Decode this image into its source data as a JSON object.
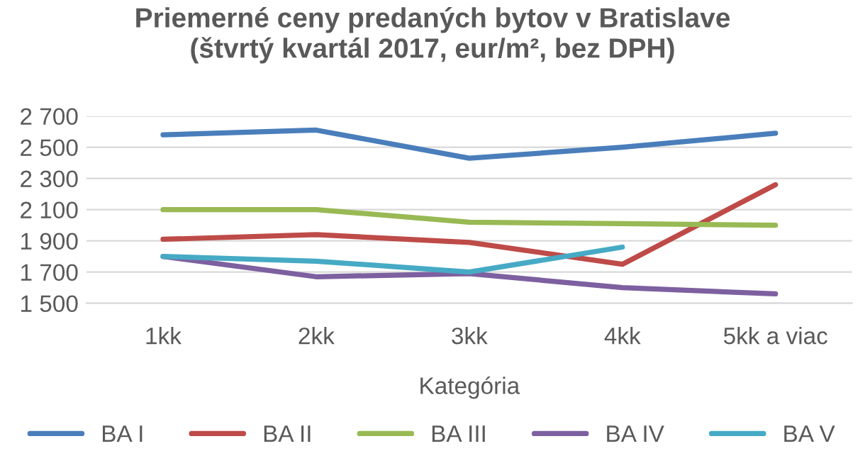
{
  "chart_data": {
    "type": "line",
    "title": "Priemerné ceny predaných bytov v Bratislave\n(štvrtý kvartál 2017, eur/m², bez DPH)",
    "xlabel": "Kategória",
    "categories": [
      "1kk",
      "2kk",
      "3kk",
      "4kk",
      "5kk a viac"
    ],
    "series": [
      {
        "name": "BA I",
        "color": "#4a7ebb",
        "values": [
          2580,
          2610,
          2430,
          2500,
          2590
        ]
      },
      {
        "name": "BA II",
        "color": "#be4b48",
        "values": [
          1910,
          1940,
          1890,
          1750,
          2260
        ]
      },
      {
        "name": "BA III",
        "color": "#98b954",
        "values": [
          2100,
          2100,
          2020,
          2010,
          2000
        ]
      },
      {
        "name": "BA IV",
        "color": "#7d60a0",
        "values": [
          1800,
          1670,
          1690,
          1600,
          1560
        ]
      },
      {
        "name": "BA V",
        "color": "#46aac5",
        "values": [
          1800,
          1770,
          1700,
          1860,
          null
        ]
      }
    ],
    "ylim": [
      1500,
      2700
    ],
    "yticks": [
      {
        "value": 1500,
        "label": "1 500"
      },
      {
        "value": 1700,
        "label": "1 700"
      },
      {
        "value": 1900,
        "label": "1 900"
      },
      {
        "value": 2100,
        "label": "2 100"
      },
      {
        "value": 2300,
        "label": "2 300"
      },
      {
        "value": 2500,
        "label": "2 500"
      },
      {
        "value": 2700,
        "label": "2 700"
      }
    ],
    "grid": "y",
    "legend": "bottom",
    "marker": "none",
    "line_style": "solid"
  }
}
